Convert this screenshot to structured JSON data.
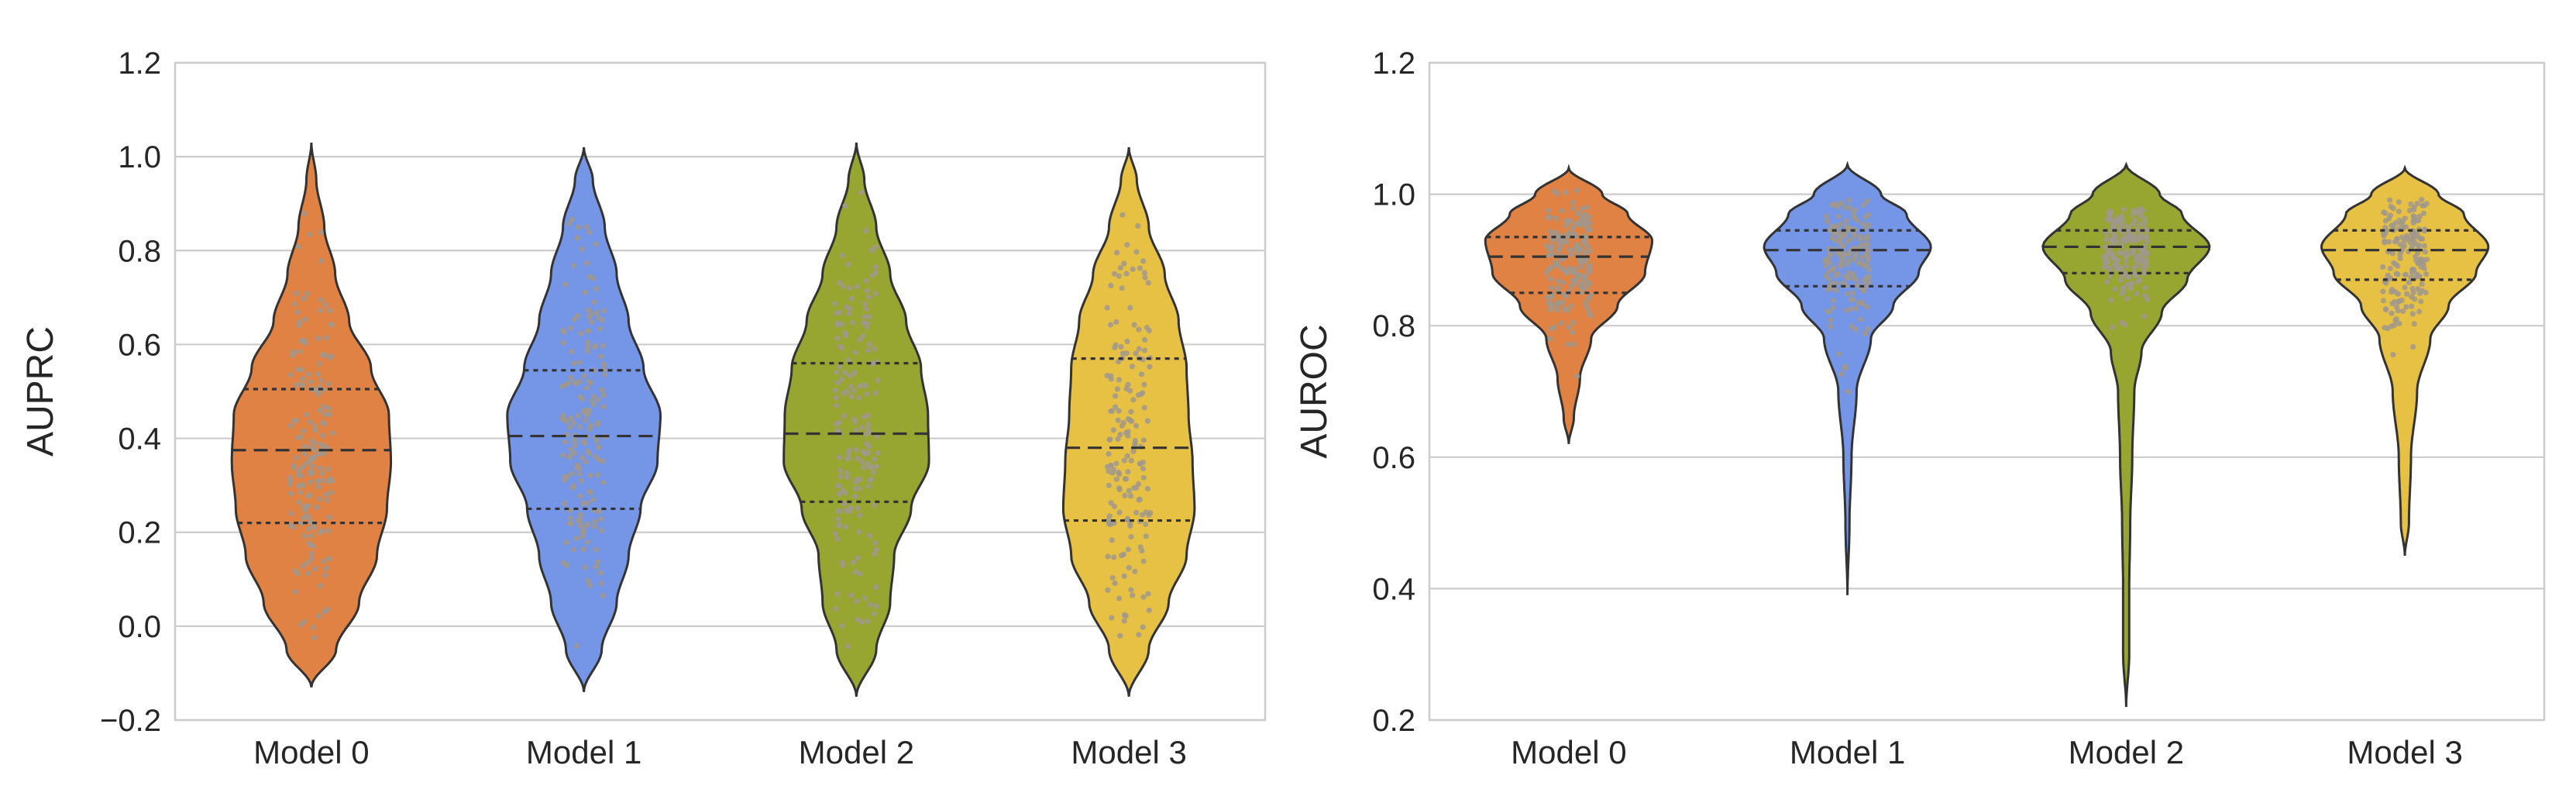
{
  "figure": {
    "background": "#ffffff",
    "grid_color": "#cccccc",
    "frame_color": "#cccccc",
    "outline_color": "#333333",
    "swarm_color": "#a0988c"
  },
  "chart_data": [
    {
      "type": "violin",
      "title": "",
      "xlabel": "",
      "ylabel": "AUPRC",
      "ylim": [
        -0.2,
        1.2
      ],
      "yticks": [
        -0.2,
        0.0,
        0.2,
        0.4,
        0.6,
        0.8,
        1.0,
        1.2
      ],
      "ytick_labels": [
        "−0.2",
        "0.0",
        "0.2",
        "0.4",
        "0.6",
        "0.8",
        "1.0",
        "1.2"
      ],
      "grid": true,
      "categories": [
        "Model 0",
        "Model 1",
        "Model 2",
        "Model 3"
      ],
      "colors": [
        "#e08244",
        "#7595e6",
        "#97a631",
        "#e6c144"
      ],
      "violins": [
        {
          "name": "Model 0",
          "min": -0.13,
          "max": 1.03,
          "q1": 0.22,
          "median": 0.375,
          "q3": 0.505,
          "profile": [
            [
              -0.13,
              0.0
            ],
            [
              -0.05,
              0.25
            ],
            [
              0.05,
              0.48
            ],
            [
              0.15,
              0.66
            ],
            [
              0.25,
              0.76
            ],
            [
              0.35,
              0.8
            ],
            [
              0.45,
              0.78
            ],
            [
              0.55,
              0.6
            ],
            [
              0.65,
              0.38
            ],
            [
              0.75,
              0.24
            ],
            [
              0.85,
              0.13
            ],
            [
              0.95,
              0.05
            ],
            [
              1.03,
              0.0
            ]
          ]
        },
        {
          "name": "Model 1",
          "min": -0.14,
          "max": 1.02,
          "q1": 0.25,
          "median": 0.405,
          "q3": 0.545,
          "profile": [
            [
              -0.14,
              0.0
            ],
            [
              -0.05,
              0.18
            ],
            [
              0.05,
              0.33
            ],
            [
              0.15,
              0.45
            ],
            [
              0.25,
              0.57
            ],
            [
              0.35,
              0.74
            ],
            [
              0.45,
              0.77
            ],
            [
              0.55,
              0.6
            ],
            [
              0.65,
              0.45
            ],
            [
              0.75,
              0.33
            ],
            [
              0.85,
              0.21
            ],
            [
              0.95,
              0.09
            ],
            [
              1.02,
              0.0
            ]
          ]
        },
        {
          "name": "Model 2",
          "min": -0.15,
          "max": 1.03,
          "q1": 0.265,
          "median": 0.41,
          "q3": 0.56,
          "profile": [
            [
              -0.15,
              0.0
            ],
            [
              -0.05,
              0.2
            ],
            [
              0.05,
              0.34
            ],
            [
              0.15,
              0.38
            ],
            [
              0.25,
              0.55
            ],
            [
              0.35,
              0.73
            ],
            [
              0.45,
              0.72
            ],
            [
              0.55,
              0.65
            ],
            [
              0.65,
              0.5
            ],
            [
              0.75,
              0.34
            ],
            [
              0.85,
              0.2
            ],
            [
              0.95,
              0.08
            ],
            [
              1.03,
              0.0
            ]
          ]
        },
        {
          "name": "Model 3",
          "min": -0.15,
          "max": 1.02,
          "q1": 0.225,
          "median": 0.38,
          "q3": 0.57,
          "profile": [
            [
              -0.15,
              0.0
            ],
            [
              -0.05,
              0.2
            ],
            [
              0.05,
              0.4
            ],
            [
              0.15,
              0.58
            ],
            [
              0.25,
              0.66
            ],
            [
              0.35,
              0.64
            ],
            [
              0.45,
              0.6
            ],
            [
              0.55,
              0.58
            ],
            [
              0.65,
              0.5
            ],
            [
              0.75,
              0.36
            ],
            [
              0.85,
              0.2
            ],
            [
              0.95,
              0.08
            ],
            [
              1.02,
              0.0
            ]
          ]
        }
      ]
    },
    {
      "type": "violin",
      "title": "",
      "xlabel": "",
      "ylabel": "AUROC",
      "ylim": [
        0.2,
        1.2
      ],
      "yticks": [
        0.2,
        0.4,
        0.6,
        0.8,
        1.0,
        1.2
      ],
      "ytick_labels": [
        "0.2",
        "0.4",
        "0.6",
        "0.8",
        "1.0",
        "1.2"
      ],
      "grid": true,
      "categories": [
        "Model 0",
        "Model 1",
        "Model 2",
        "Model 3"
      ],
      "colors": [
        "#e08244",
        "#7595e6",
        "#97a631",
        "#e6c144"
      ],
      "violins": [
        {
          "name": "Model 0",
          "min": 0.62,
          "max": 1.04,
          "q1": 0.85,
          "median": 0.905,
          "q3": 0.935,
          "profile": [
            [
              0.62,
              0.0
            ],
            [
              0.66,
              0.05
            ],
            [
              0.72,
              0.11
            ],
            [
              0.78,
              0.22
            ],
            [
              0.83,
              0.48
            ],
            [
              0.88,
              0.75
            ],
            [
              0.93,
              0.82
            ],
            [
              0.97,
              0.58
            ],
            [
              1.0,
              0.33
            ],
            [
              1.04,
              0.0
            ]
          ]
        },
        {
          "name": "Model 1",
          "min": 0.39,
          "max": 1.045,
          "q1": 0.86,
          "median": 0.915,
          "q3": 0.945,
          "profile": [
            [
              0.39,
              0.0
            ],
            [
              0.5,
              0.02
            ],
            [
              0.6,
              0.04
            ],
            [
              0.7,
              0.09
            ],
            [
              0.78,
              0.23
            ],
            [
              0.83,
              0.45
            ],
            [
              0.88,
              0.7
            ],
            [
              0.92,
              0.82
            ],
            [
              0.97,
              0.58
            ],
            [
              1.0,
              0.33
            ],
            [
              1.045,
              0.0
            ]
          ]
        },
        {
          "name": "Model 2",
          "min": 0.22,
          "max": 1.045,
          "q1": 0.88,
          "median": 0.92,
          "q3": 0.945,
          "profile": [
            [
              0.22,
              0.0
            ],
            [
              0.3,
              0.03
            ],
            [
              0.4,
              0.03
            ],
            [
              0.5,
              0.04
            ],
            [
              0.6,
              0.06
            ],
            [
              0.7,
              0.08
            ],
            [
              0.76,
              0.15
            ],
            [
              0.82,
              0.35
            ],
            [
              0.87,
              0.6
            ],
            [
              0.92,
              0.82
            ],
            [
              0.97,
              0.55
            ],
            [
              1.0,
              0.33
            ],
            [
              1.045,
              0.0
            ]
          ]
        },
        {
          "name": "Model 3",
          "min": 0.45,
          "max": 1.04,
          "q1": 0.87,
          "median": 0.915,
          "q3": 0.945,
          "profile": [
            [
              0.45,
              0.0
            ],
            [
              0.5,
              0.04
            ],
            [
              0.6,
              0.06
            ],
            [
              0.7,
              0.12
            ],
            [
              0.78,
              0.25
            ],
            [
              0.83,
              0.43
            ],
            [
              0.88,
              0.7
            ],
            [
              0.92,
              0.82
            ],
            [
              0.97,
              0.58
            ],
            [
              1.0,
              0.33
            ],
            [
              1.04,
              0.0
            ]
          ]
        }
      ]
    }
  ]
}
